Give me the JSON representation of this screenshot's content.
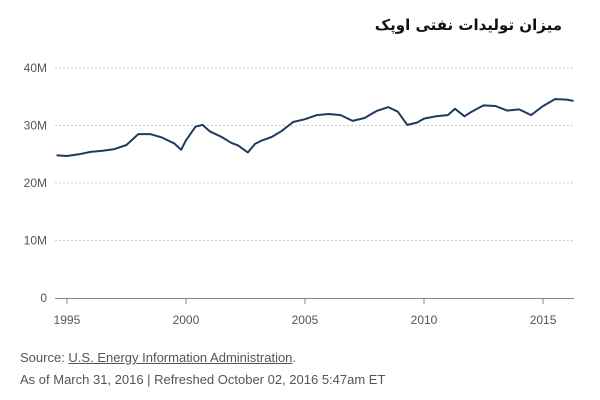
{
  "chart_data": {
    "type": "line",
    "title": "میزان تولیدات نفتی اوپک",
    "xlabel": "",
    "ylabel": "",
    "x_ticks": [
      "1995",
      "2000",
      "2005",
      "2010",
      "2015"
    ],
    "y_ticks": [
      "0",
      "10M",
      "20M",
      "30M",
      "40M"
    ],
    "xlim": [
      1994.5,
      2016.3
    ],
    "ylim": [
      0,
      40000000
    ],
    "grid": "horizontal-dashed",
    "line_color": "#1f3a5f",
    "series": [
      {
        "x": [
          1994.6,
          1995.0,
          1995.5,
          1996.0,
          1996.5,
          1997.0,
          1997.5,
          1998.0,
          1998.5,
          1999.0,
          1999.5,
          1999.8,
          2000.0,
          2000.4,
          2000.7,
          2001.0,
          2001.5,
          2001.9,
          2002.2,
          2002.6,
          2002.9,
          2003.2,
          2003.6,
          2004.0,
          2004.5,
          2005.0,
          2005.5,
          2006.0,
          2006.5,
          2007.0,
          2007.5,
          2008.0,
          2008.5,
          2008.9,
          2009.3,
          2009.7,
          2010.0,
          2010.5,
          2011.0,
          2011.3,
          2011.7,
          2012.0,
          2012.5,
          2013.0,
          2013.5,
          2014.0,
          2014.5,
          2015.0,
          2015.5,
          2016.0,
          2016.25
        ],
        "y": [
          24800000,
          24700000,
          25000000,
          25400000,
          25600000,
          25900000,
          26600000,
          28500000,
          28500000,
          27900000,
          26900000,
          25800000,
          27400000,
          29800000,
          30100000,
          29000000,
          28000000,
          27000000,
          26500000,
          25300000,
          26800000,
          27400000,
          28000000,
          29000000,
          30600000,
          31100000,
          31800000,
          32000000,
          31800000,
          30800000,
          31300000,
          32500000,
          33200000,
          32400000,
          30100000,
          30500000,
          31200000,
          31600000,
          31800000,
          32900000,
          31600000,
          32400000,
          33500000,
          33400000,
          32600000,
          32800000,
          31800000,
          33400000,
          34600000,
          34500000,
          34300000
        ]
      }
    ]
  },
  "footer": {
    "source_prefix": "Source: ",
    "source_link": "U.S. Energy Information Administration",
    "source_suffix": ".",
    "date_text": "As of March 31, 2016 | Refreshed October 02, 2016 5:47am ET"
  }
}
